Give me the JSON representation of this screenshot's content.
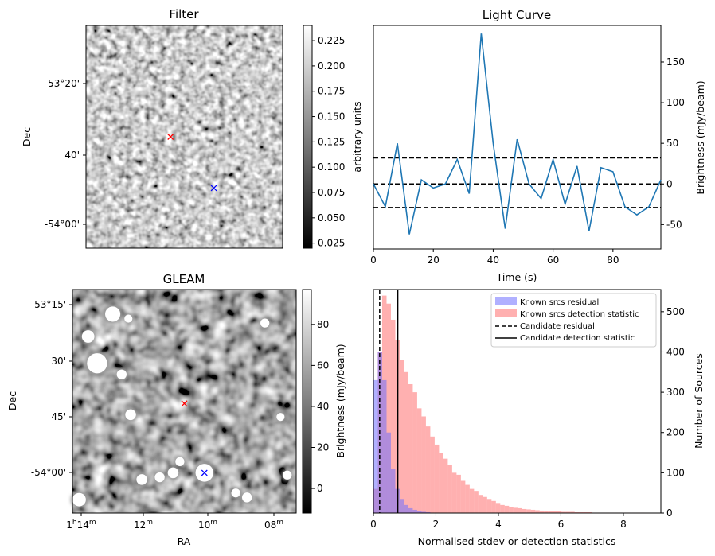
{
  "chart_data": [
    {
      "type": "image",
      "title": "Filter",
      "ylabel": "Dec",
      "yticks": [
        "-53°20'",
        "40'",
        "-54°00'"
      ],
      "colorbar": {
        "label": "arbitrary units",
        "ticks": [
          "0.225",
          "0.200",
          "0.175",
          "0.150",
          "0.125",
          "0.100",
          "0.075",
          "0.050",
          "0.025"
        ],
        "range": [
          0.02,
          0.24
        ]
      },
      "markers": [
        {
          "symbol": "x",
          "color": "#ff0000",
          "ra_frac": 0.43,
          "dec_frac": 0.5
        },
        {
          "symbol": "x",
          "color": "#0000ff",
          "ra_frac": 0.65,
          "dec_frac": 0.73
        }
      ]
    },
    {
      "type": "line",
      "title": "Light Curve",
      "xlabel": "Time (s)",
      "ylabel": "Brightness (mJy/beam)",
      "xlim": [
        0,
        96
      ],
      "ylim": [
        -80,
        195
      ],
      "xticks": [
        "0",
        "20",
        "40",
        "60",
        "80"
      ],
      "yticks": [
        "-50",
        "0",
        "50",
        "100",
        "150"
      ],
      "x": [
        0,
        4,
        8,
        12,
        16,
        20,
        24,
        28,
        32,
        36,
        40,
        44,
        48,
        52,
        56,
        60,
        64,
        68,
        72,
        76,
        80,
        84,
        88,
        92,
        96
      ],
      "y": [
        0,
        -28,
        50,
        -62,
        5,
        -5,
        0,
        30,
        -12,
        185,
        50,
        -55,
        55,
        0,
        -18,
        30,
        -25,
        22,
        -58,
        20,
        15,
        -28,
        -38,
        -28,
        5
      ],
      "color": "#1f77b4",
      "hlines": [
        {
          "y": 32,
          "style": "dashed"
        },
        {
          "y": 0,
          "style": "dashed"
        },
        {
          "y": -29,
          "style": "dashed"
        }
      ]
    },
    {
      "type": "image",
      "title": "GLEAM",
      "xlabel": "RA",
      "ylabel": "Dec",
      "yticks": [
        "-53°15'",
        "30'",
        "45'",
        "-54°00'"
      ],
      "xticks": [
        {
          "main": "1",
          "sup1": "h",
          "main2": "14",
          "sup2": "m"
        },
        {
          "main": "12",
          "sup1": "m"
        },
        {
          "main": "10",
          "sup1": "m"
        },
        {
          "main": "08",
          "sup1": "m"
        }
      ],
      "colorbar": {
        "label": "Brightness (mJy/beam)",
        "ticks": [
          "80",
          "60",
          "40",
          "20",
          "0"
        ],
        "range": [
          -12,
          97
        ]
      },
      "sources": [
        {
          "ra_frac": 0.18,
          "dec_frac": 0.11,
          "r": 0.034
        },
        {
          "ra_frac": 0.07,
          "dec_frac": 0.21,
          "r": 0.028
        },
        {
          "ra_frac": 0.11,
          "dec_frac": 0.33,
          "r": 0.045
        },
        {
          "ra_frac": 0.25,
          "dec_frac": 0.13,
          "r": 0.018
        },
        {
          "ra_frac": 0.22,
          "dec_frac": 0.38,
          "r": 0.022
        },
        {
          "ra_frac": 0.26,
          "dec_frac": 0.56,
          "r": 0.024
        },
        {
          "ra_frac": 0.86,
          "dec_frac": 0.15,
          "r": 0.02
        },
        {
          "ra_frac": 0.45,
          "dec_frac": 0.82,
          "r": 0.024
        },
        {
          "ra_frac": 0.48,
          "dec_frac": 0.77,
          "r": 0.02
        },
        {
          "ra_frac": 0.39,
          "dec_frac": 0.84,
          "r": 0.022
        },
        {
          "ra_frac": 0.31,
          "dec_frac": 0.85,
          "r": 0.024
        },
        {
          "ra_frac": 0.59,
          "dec_frac": 0.82,
          "r": 0.04
        },
        {
          "ra_frac": 0.03,
          "dec_frac": 0.94,
          "r": 0.03
        },
        {
          "ra_frac": 0.73,
          "dec_frac": 0.91,
          "r": 0.02
        },
        {
          "ra_frac": 0.78,
          "dec_frac": 0.93,
          "r": 0.022
        },
        {
          "ra_frac": 0.93,
          "dec_frac": 0.57,
          "r": 0.018
        },
        {
          "ra_frac": 0.96,
          "dec_frac": 0.83,
          "r": 0.02
        }
      ],
      "markers": [
        {
          "symbol": "x",
          "color": "#ff0000",
          "ra_frac": 0.5,
          "dec_frac": 0.51
        },
        {
          "symbol": "x",
          "color": "#0000ff",
          "ra_frac": 0.59,
          "dec_frac": 0.82
        }
      ]
    },
    {
      "type": "histogram",
      "xlabel": "Normalised stdev or detection statistics",
      "ylabel": "Number of Sources",
      "xlim": [
        0,
        9.2
      ],
      "ylim": [
        0,
        555
      ],
      "xticks": [
        "0",
        "2",
        "4",
        "6",
        "8"
      ],
      "yticks": [
        "0",
        "100",
        "200",
        "300",
        "400",
        "500"
      ],
      "bin_width": 0.14,
      "series": [
        {
          "name": "Known srcs residual",
          "color": "#7070ff",
          "bins_start": 0,
          "values": [
            330,
            400,
            330,
            200,
            110,
            60,
            35,
            20,
            12,
            8,
            5,
            3,
            2,
            1,
            1
          ]
        },
        {
          "name": "Known srcs detection statistic",
          "color": "#ff7070",
          "bins_start": 0,
          "values": [
            60,
            400,
            540,
            520,
            480,
            430,
            380,
            350,
            320,
            300,
            260,
            240,
            215,
            190,
            170,
            150,
            135,
            120,
            100,
            95,
            80,
            70,
            60,
            55,
            45,
            40,
            35,
            30,
            25,
            20,
            18,
            15,
            13,
            12,
            10,
            9,
            8,
            7,
            6,
            5,
            5,
            4,
            4,
            3,
            3,
            3,
            2,
            2,
            2,
            2,
            1,
            1,
            1,
            1,
            1,
            1,
            1,
            1,
            1,
            1,
            1,
            1
          ]
        }
      ],
      "vlines": [
        {
          "name": "Candidate residual",
          "x": 0.2,
          "style": "dashed"
        },
        {
          "name": "Candidate detection statistic",
          "x": 0.78,
          "style": "solid"
        }
      ]
    }
  ]
}
